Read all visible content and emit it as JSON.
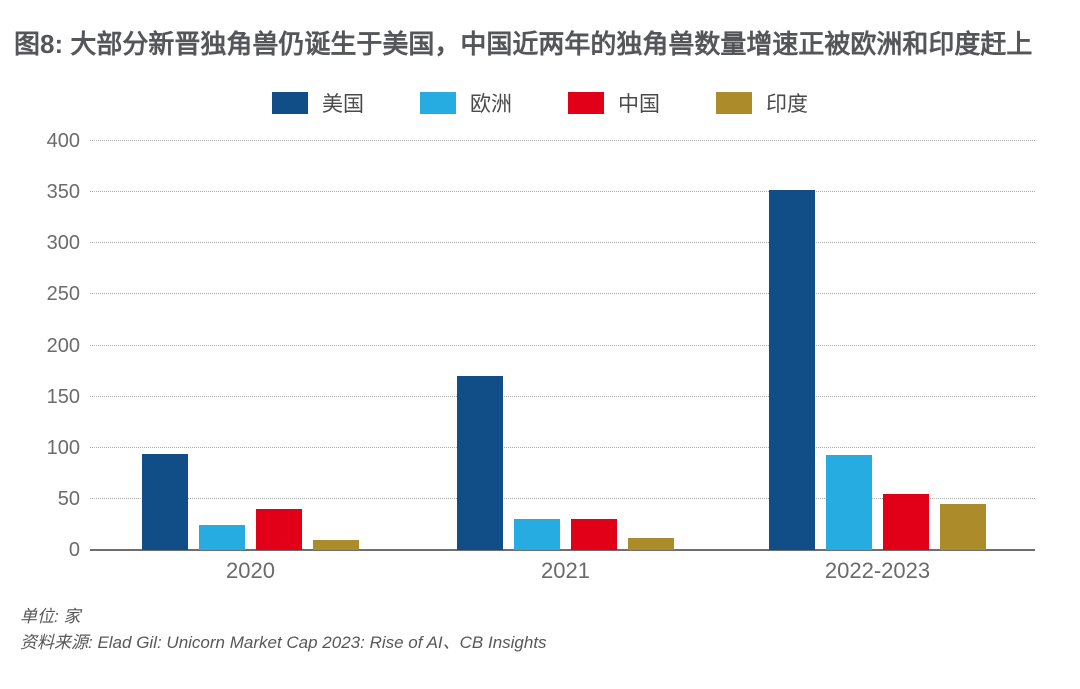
{
  "title": "图8: 大部分新晋独角兽仍诞生于美国，中国近两年的独角兽数量增速正被欧洲和印度赶上",
  "legend": {
    "items": [
      {
        "label": "美国",
        "color": "#114E88"
      },
      {
        "label": "欧洲",
        "color": "#27ACE2"
      },
      {
        "label": "中国",
        "color": "#E20019"
      },
      {
        "label": "印度",
        "color": "#AC8C2A"
      }
    ]
  },
  "chart_data": {
    "type": "bar",
    "title": "图8: 大部分新晋独角兽仍诞生于美国，中国近两年的独角兽数量增速正被欧洲和印度赶上",
    "categories": [
      "2020",
      "2021",
      "2022-2023"
    ],
    "series": [
      {
        "name": "美国",
        "color": "#114E88",
        "values": [
          94,
          170,
          352
        ]
      },
      {
        "name": "欧洲",
        "color": "#27ACE2",
        "values": [
          24,
          30,
          93
        ]
      },
      {
        "name": "中国",
        "color": "#E20019",
        "values": [
          40,
          30,
          55
        ]
      },
      {
        "name": "印度",
        "color": "#AC8C2A",
        "values": [
          10,
          12,
          45
        ]
      }
    ],
    "xlabel": "",
    "ylabel": "",
    "ylim": [
      0,
      400
    ],
    "y_ticks": [
      0,
      50,
      100,
      150,
      200,
      250,
      300,
      350,
      400
    ],
    "grid": "horizontal-dotted",
    "legend_position": "top",
    "unit": "家"
  },
  "footer": {
    "unit_label": "单位: 家",
    "source_label": "资料来源: Elad Gil: Unicorn Market Cap 2023: Rise of AI、CB Insights"
  },
  "colors": {
    "title_text": "#55565A",
    "axis_text": "#6B6B6D",
    "gridline": "#ABABAB",
    "axis_line": "#6E6E70",
    "background": "#FFFFFF"
  }
}
